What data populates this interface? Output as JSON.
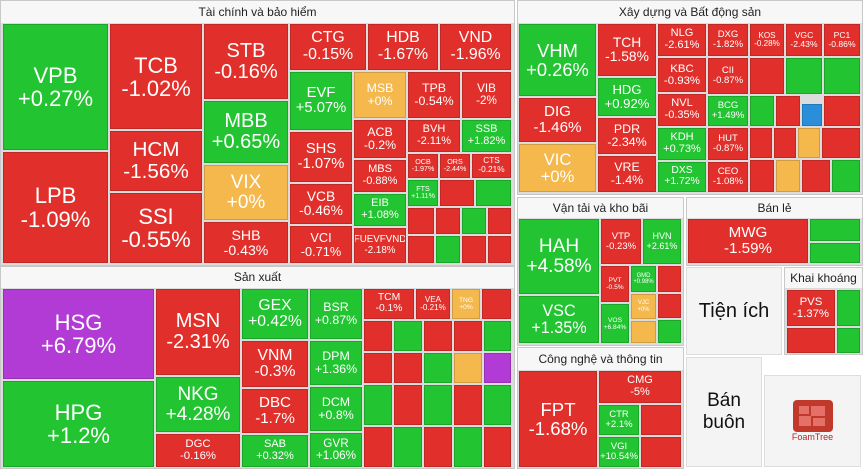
{
  "sections": [
    {
      "title": "Tài chính và bảo hiểm",
      "tiles": [
        {
          "ticker": "VPB",
          "change": "+0.27%",
          "color": "#22c431"
        },
        {
          "ticker": "LPB",
          "change": "-1.09%",
          "color": "#e1302b"
        },
        {
          "ticker": "TCB",
          "change": "-1.02%",
          "color": "#e1302b"
        },
        {
          "ticker": "HCM",
          "change": "-1.56%",
          "color": "#e1302b"
        },
        {
          "ticker": "SSI",
          "change": "-0.55%",
          "color": "#e1302b"
        },
        {
          "ticker": "STB",
          "change": "-0.16%",
          "color": "#e1302b"
        },
        {
          "ticker": "MBB",
          "change": "+0.65%",
          "color": "#22c431"
        },
        {
          "ticker": "VIX",
          "change": "+0%",
          "color": "#f4b84c"
        },
        {
          "ticker": "SHB",
          "change": "-0.43%",
          "color": "#e1302b"
        },
        {
          "ticker": "CTG",
          "change": "-0.15%",
          "color": "#e1302b"
        },
        {
          "ticker": "HDB",
          "change": "-1.67%",
          "color": "#e1302b"
        },
        {
          "ticker": "VND",
          "change": "-1.96%",
          "color": "#e1302b"
        },
        {
          "ticker": "EVF",
          "change": "+5.07%",
          "color": "#22c431"
        },
        {
          "ticker": "SHS",
          "change": "-1.07%",
          "color": "#e1302b"
        },
        {
          "ticker": "VCB",
          "change": "-0.46%",
          "color": "#e1302b"
        },
        {
          "ticker": "VCI",
          "change": "-0.71%",
          "color": "#e1302b"
        },
        {
          "ticker": "MSB",
          "change": "+0%",
          "color": "#f4b84c"
        },
        {
          "ticker": "TPB",
          "change": "-0.54%",
          "color": "#e1302b"
        },
        {
          "ticker": "VIB",
          "change": "-2%",
          "color": "#e1302b"
        },
        {
          "ticker": "ACB",
          "change": "-0.2%",
          "color": "#e1302b"
        },
        {
          "ticker": "BVH",
          "change": "-2.11%",
          "color": "#e1302b"
        },
        {
          "ticker": "SSB",
          "change": "+1.82%",
          "color": "#22c431"
        },
        {
          "ticker": "MBS",
          "change": "-0.88%",
          "color": "#e1302b"
        },
        {
          "ticker": "OCB",
          "change": "-1.97%",
          "color": "#e1302b"
        },
        {
          "ticker": "ORS",
          "change": "-2.44%",
          "color": "#e1302b"
        },
        {
          "ticker": "CTS",
          "change": "-0.21%",
          "color": "#e1302b"
        },
        {
          "ticker": "EIB",
          "change": "+1.08%",
          "color": "#22c431"
        },
        {
          "ticker": "FUEVFVND",
          "change": "-2.18%",
          "color": "#e1302b"
        },
        {
          "ticker": "FTS",
          "change": "+1.11%",
          "color": "#22c431"
        }
      ]
    },
    {
      "title": "Sản xuất",
      "tiles": [
        {
          "ticker": "HSG",
          "change": "+6.79%",
          "color": "#b13bd4"
        },
        {
          "ticker": "HPG",
          "change": "+1.2%",
          "color": "#22c431"
        },
        {
          "ticker": "MSN",
          "change": "-2.31%",
          "color": "#e1302b"
        },
        {
          "ticker": "NKG",
          "change": "+4.28%",
          "color": "#22c431"
        },
        {
          "ticker": "DGC",
          "change": "-0.16%",
          "color": "#e1302b"
        },
        {
          "ticker": "GEX",
          "change": "+0.42%",
          "color": "#22c431"
        },
        {
          "ticker": "VNM",
          "change": "-0.3%",
          "color": "#e1302b"
        },
        {
          "ticker": "DBC",
          "change": "-1.7%",
          "color": "#e1302b"
        },
        {
          "ticker": "SAB",
          "change": "+0.32%",
          "color": "#22c431"
        },
        {
          "ticker": "BSR",
          "change": "+0.87%",
          "color": "#22c431"
        },
        {
          "ticker": "DPM",
          "change": "+1.36%",
          "color": "#22c431"
        },
        {
          "ticker": "DCM",
          "change": "+0.8%",
          "color": "#22c431"
        },
        {
          "ticker": "GVR",
          "change": "+1.06%",
          "color": "#22c431"
        },
        {
          "ticker": "TCM",
          "change": "-0.1%",
          "color": "#e1302b"
        },
        {
          "ticker": "VEA",
          "change": "-0.21%",
          "color": "#e1302b"
        },
        {
          "ticker": "TNG",
          "change": "+0%",
          "color": "#f4b84c"
        }
      ]
    },
    {
      "title": "Xây dựng và Bất động sản",
      "tiles": [
        {
          "ticker": "VHM",
          "change": "+0.26%",
          "color": "#22c431"
        },
        {
          "ticker": "DIG",
          "change": "-1.46%",
          "color": "#e1302b"
        },
        {
          "ticker": "VIC",
          "change": "+0%",
          "color": "#f4b84c"
        },
        {
          "ticker": "TCH",
          "change": "-1.58%",
          "color": "#e1302b"
        },
        {
          "ticker": "HDG",
          "change": "+0.92%",
          "color": "#22c431"
        },
        {
          "ticker": "PDR",
          "change": "-2.34%",
          "color": "#e1302b"
        },
        {
          "ticker": "VRE",
          "change": "-1.4%",
          "color": "#e1302b"
        },
        {
          "ticker": "NLG",
          "change": "-2.61%",
          "color": "#e1302b"
        },
        {
          "ticker": "DXG",
          "change": "-1.82%",
          "color": "#e1302b"
        },
        {
          "ticker": "KOS",
          "change": "-0.28%",
          "color": "#e1302b"
        },
        {
          "ticker": "VGC",
          "change": "-2.43%",
          "color": "#e1302b"
        },
        {
          "ticker": "PC1",
          "change": "-0.86%",
          "color": "#e1302b"
        },
        {
          "ticker": "KBC",
          "change": "-0.93%",
          "color": "#e1302b"
        },
        {
          "ticker": "NVL",
          "change": "-0.35%",
          "color": "#e1302b"
        },
        {
          "ticker": "KDH",
          "change": "+0.73%",
          "color": "#22c431"
        },
        {
          "ticker": "DXS",
          "change": "+1.72%",
          "color": "#22c431"
        },
        {
          "ticker": "CII",
          "change": "-0.87%",
          "color": "#e1302b"
        },
        {
          "ticker": "BCG",
          "change": "+1.49%",
          "color": "#22c431"
        },
        {
          "ticker": "HUT",
          "change": "-0.87%",
          "color": "#e1302b"
        },
        {
          "ticker": "CEO",
          "change": "-1.08%",
          "color": "#e1302b"
        }
      ]
    },
    {
      "title": "Vận tải và kho bãi",
      "tiles": [
        {
          "ticker": "HAH",
          "change": "+4.58%",
          "color": "#22c431"
        },
        {
          "ticker": "VSC",
          "change": "+1.35%",
          "color": "#22c431"
        },
        {
          "ticker": "VTP",
          "change": "-0.23%",
          "color": "#e1302b"
        },
        {
          "ticker": "HVN",
          "change": "+2.61%",
          "color": "#22c431"
        },
        {
          "ticker": "PVT",
          "change": "-0.5%",
          "color": "#e1302b"
        },
        {
          "ticker": "GMD",
          "change": "+0.98%",
          "color": "#22c431"
        },
        {
          "ticker": "VOS",
          "change": "+6.84%",
          "color": "#22c431"
        },
        {
          "ticker": "VJC",
          "change": "+0%",
          "color": "#f4b84c"
        }
      ]
    },
    {
      "title": "Bán lẻ",
      "tiles": [
        {
          "ticker": "MWG",
          "change": "-1.59%",
          "color": "#e1302b"
        }
      ]
    },
    {
      "title": "Khai khoáng",
      "tiles": [
        {
          "ticker": "PVS",
          "change": "-1.37%",
          "color": "#e1302b"
        }
      ]
    },
    {
      "title": "Công nghệ và thông tin",
      "tiles": [
        {
          "ticker": "FPT",
          "change": "-1.68%",
          "color": "#e1302b"
        },
        {
          "ticker": "CMG",
          "change": "-5%",
          "color": "#e1302b"
        },
        {
          "ticker": "CTR",
          "change": "+2.1%",
          "color": "#22c431"
        },
        {
          "ticker": "VGI",
          "change": "+10.54%",
          "color": "#22c431"
        }
      ]
    }
  ],
  "labels": [
    "Tiện ích",
    "Bán buôn"
  ],
  "logo": "FoamTree"
}
